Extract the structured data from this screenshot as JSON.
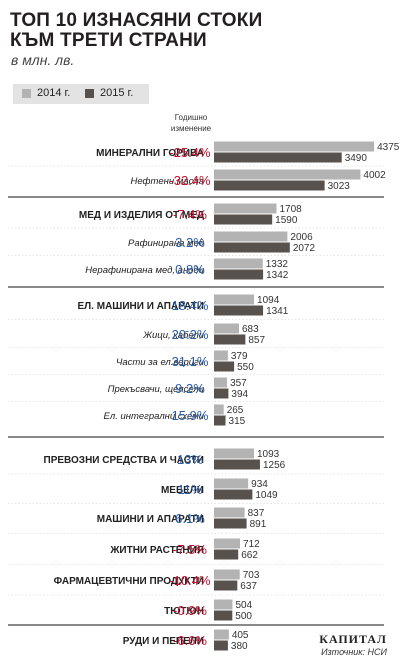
{
  "header": {
    "title_line1": "ТОП 10 ИЗНАСЯНИ СТОКИ",
    "title_line2": "КЪМ ТРЕТИ СТРАНИ",
    "subtitle": "в млн. лв."
  },
  "yoy_header": "Годишно изменение",
  "footer": {
    "brand": "КАПИТАЛ",
    "source": "Източник: НСИ"
  },
  "colors": {
    "series_2014": "#b3b3b3",
    "series_2015": "#58524f",
    "negative": "#c8102e",
    "positive": "#2a5da8",
    "divider": "#444444"
  },
  "chart_data": {
    "type": "bar",
    "orientation": "horizontal",
    "title": "ТОП 10 ИЗНАСЯНИ СТОКИ КЪМ ТРЕТИ СТРАНИ",
    "unit": "в млн. лв.",
    "legend_position": "top-left",
    "series": [
      {
        "name": "2014 г."
      },
      {
        "name": "2015 г."
      }
    ],
    "categories": [
      {
        "label": "МИНЕРАЛНИ ГОРИВА",
        "main": true,
        "change": "-25.4%",
        "v2014": 4375,
        "v2015": 3490
      },
      {
        "label": "Нефтени масла",
        "main": false,
        "change": "-32.4%",
        "v2014": 4002,
        "v2015": 3023
      },
      {
        "label": "МЕД И ИЗДЕЛИЯ ОТ МЕД",
        "main": true,
        "change": "-7.4%",
        "v2014": 1708,
        "v2015": 1590
      },
      {
        "label": "Рафинирана мед",
        "main": false,
        "change": "3.2%",
        "v2014": 2006,
        "v2015": 2072
      },
      {
        "label": "Нерафинирана мед, аноди",
        "main": false,
        "change": "0.8%",
        "v2014": 1332,
        "v2015": 1342
      },
      {
        "label": "ЕЛ. МАШИНИ И АПАРАТИ",
        "main": true,
        "change": "18.4%",
        "v2014": 1094,
        "v2015": 1341
      },
      {
        "label": "Жици, кабели",
        "main": false,
        "change": "20.2%",
        "v2014": 683,
        "v2015": 857
      },
      {
        "label": "Части за ел.вериги",
        "main": false,
        "change": "31.1%",
        "v2014": 379,
        "v2015": 550
      },
      {
        "label": "Прекъсвачи, щепсели",
        "main": false,
        "change": "9.2%",
        "v2014": 357,
        "v2015": 394
      },
      {
        "label": "Ел. интегрални схеми",
        "main": false,
        "change": "15.9%",
        "v2014": 265,
        "v2015": 315
      },
      {
        "label": "ПРЕВОЗНИ СРЕДСТВА И ЧАСТИ",
        "main": true,
        "change": "13%",
        "v2014": 1093,
        "v2015": 1256
      },
      {
        "label": "МЕБЕЛИ",
        "main": true,
        "change": "11%",
        "v2014": 934,
        "v2015": 1049
      },
      {
        "label": "МАШИНИ И АПАРАТИ",
        "main": true,
        "change": "6.1%",
        "v2014": 837,
        "v2015": 891
      },
      {
        "label": "ЖИТНИ РАСТЕНИЯ",
        "main": true,
        "change": "-7.5%",
        "v2014": 712,
        "v2015": 662
      },
      {
        "label": "ФАРМАЦЕВТИЧНИ ПРОДУКТИ",
        "main": true,
        "change": "-10.4%",
        "v2014": 703,
        "v2015": 637
      },
      {
        "label": "ТЮТЮН",
        "main": true,
        "change": "-0.9%",
        "v2014": 504,
        "v2015": 500
      },
      {
        "label": "РУДИ И ПЕПЕЛИ",
        "main": true,
        "change": "-6.6%",
        "v2014": 405,
        "v2015": 380
      }
    ]
  }
}
